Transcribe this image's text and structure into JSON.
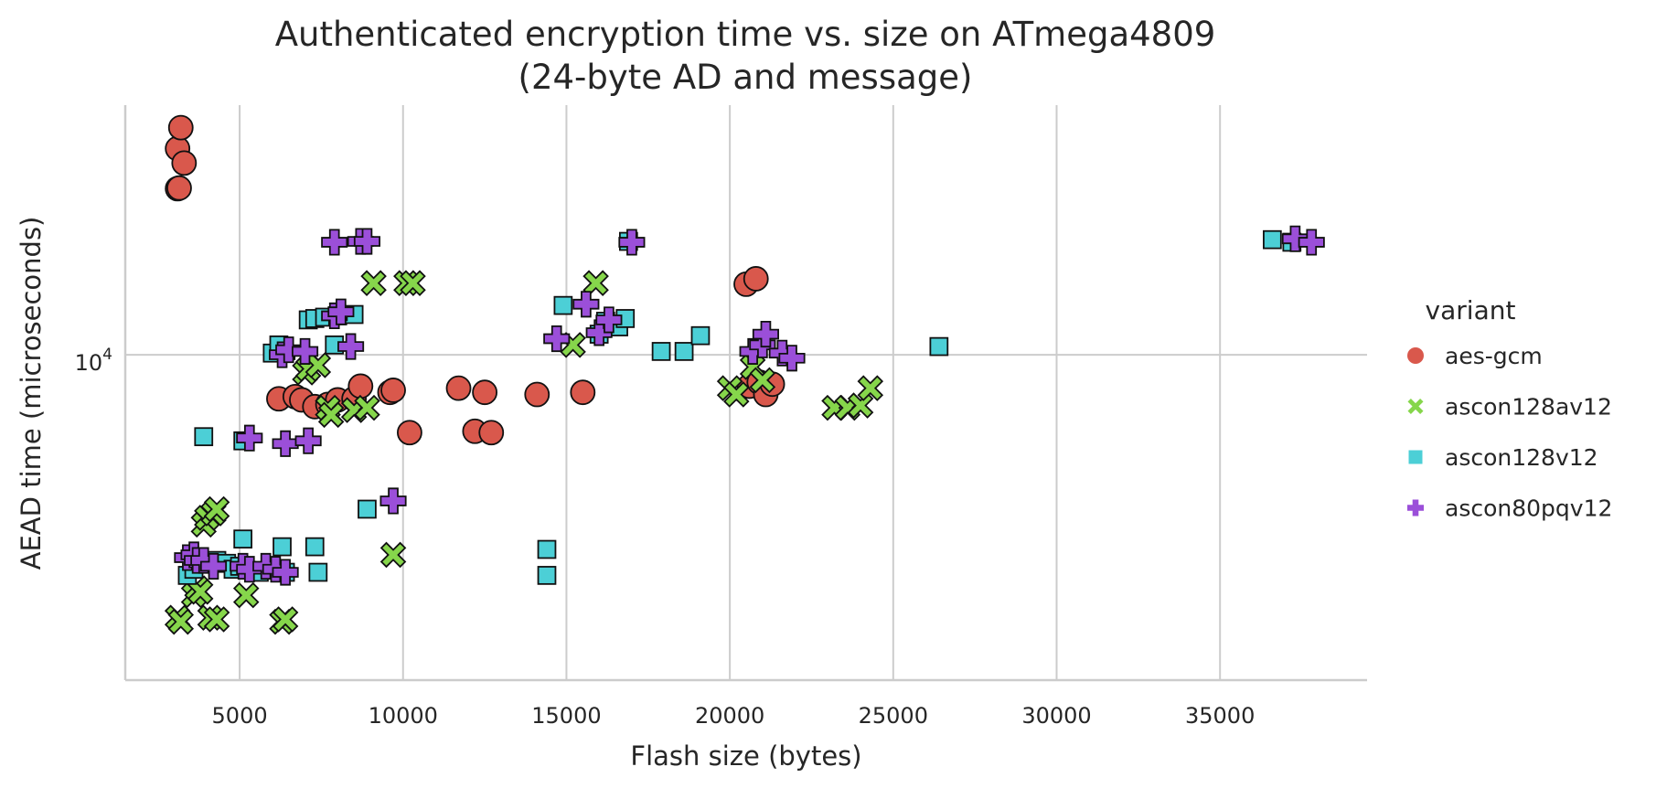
{
  "chart_data": {
    "type": "scatter",
    "title_line1": "Authenticated encryption time vs. size on ATmega4809",
    "title_line2": "(24-byte AD and message)",
    "xlabel": "Flash size (bytes)",
    "ylabel": "AEAD time (microseconds)",
    "xlim": [
      1500,
      39500
    ],
    "ylim": [
      1450,
      44000
    ],
    "yscale": "log",
    "x_ticks": [
      5000,
      10000,
      15000,
      20000,
      25000,
      30000,
      35000
    ],
    "x_tick_labels": [
      "5000",
      "10000",
      "15000",
      "20000",
      "25000",
      "30000",
      "35000"
    ],
    "y_ticks": [
      10000
    ],
    "y_tick_base": "10",
    "y_tick_exp": "4",
    "grid": true,
    "legend_title": "variant",
    "legend_position": "right",
    "series": [
      {
        "name": "aes-gcm",
        "marker": "circle",
        "color": "#d9584c",
        "points": [
          [
            3100,
            34000
          ],
          [
            3200,
            38500
          ],
          [
            3300,
            31200
          ],
          [
            3100,
            26800
          ],
          [
            3150,
            26900
          ],
          [
            6200,
            7700
          ],
          [
            6700,
            7800
          ],
          [
            6900,
            7650
          ],
          [
            7300,
            7350
          ],
          [
            7700,
            7450
          ],
          [
            8000,
            7650
          ],
          [
            8500,
            7700
          ],
          [
            8700,
            8300
          ],
          [
            9600,
            8000
          ],
          [
            9700,
            8100
          ],
          [
            10200,
            6300
          ],
          [
            11700,
            8200
          ],
          [
            12200,
            6350
          ],
          [
            12500,
            8000
          ],
          [
            12700,
            6300
          ],
          [
            14100,
            7900
          ],
          [
            15500,
            8000
          ],
          [
            20500,
            15200
          ],
          [
            20800,
            15700
          ],
          [
            20600,
            8300
          ],
          [
            20900,
            8500
          ],
          [
            21100,
            7900
          ],
          [
            21300,
            8400
          ]
        ]
      },
      {
        "name": "ascon128av12",
        "marker": "x",
        "color": "#86d64b",
        "points": [
          [
            3100,
            2100
          ],
          [
            3200,
            2050
          ],
          [
            3600,
            2400
          ],
          [
            3700,
            2500
          ],
          [
            3800,
            2450
          ],
          [
            3900,
            3650
          ],
          [
            4000,
            3800
          ],
          [
            4200,
            3900
          ],
          [
            4300,
            4000
          ],
          [
            4100,
            2100
          ],
          [
            4300,
            2080
          ],
          [
            5200,
            2400
          ],
          [
            6300,
            2050
          ],
          [
            6400,
            2080
          ],
          [
            7000,
            9000
          ],
          [
            7100,
            9200
          ],
          [
            7400,
            9400
          ],
          [
            7700,
            7300
          ],
          [
            7800,
            7000
          ],
          [
            8500,
            7200
          ],
          [
            8900,
            7300
          ],
          [
            9100,
            15300
          ],
          [
            9700,
            3050
          ],
          [
            10100,
            15300
          ],
          [
            10300,
            15300
          ],
          [
            15200,
            10600
          ],
          [
            15900,
            15300
          ],
          [
            20000,
            8200
          ],
          [
            20200,
            7900
          ],
          [
            20700,
            9300
          ],
          [
            21000,
            8600
          ],
          [
            23200,
            7300
          ],
          [
            23600,
            7300
          ],
          [
            24000,
            7400
          ],
          [
            24300,
            8200
          ]
        ]
      },
      {
        "name": "ascon128v12",
        "marker": "square",
        "color": "#4ccfd6",
        "points": [
          [
            3400,
            2700
          ],
          [
            3600,
            2800
          ],
          [
            3900,
            6150
          ],
          [
            4300,
            2950
          ],
          [
            4600,
            2900
          ],
          [
            4800,
            2800
          ],
          [
            5000,
            2850
          ],
          [
            5100,
            3350
          ],
          [
            5100,
            6000
          ],
          [
            5600,
            2750
          ],
          [
            6000,
            10100
          ],
          [
            6200,
            10600
          ],
          [
            6300,
            3200
          ],
          [
            6400,
            2750
          ],
          [
            7100,
            12300
          ],
          [
            7300,
            12400
          ],
          [
            7300,
            3200
          ],
          [
            7400,
            2750
          ],
          [
            7600,
            12500
          ],
          [
            7900,
            10600
          ],
          [
            8000,
            12600
          ],
          [
            8500,
            12700
          ],
          [
            8900,
            4000
          ],
          [
            14400,
            3150
          ],
          [
            14400,
            2700
          ],
          [
            14900,
            13400
          ],
          [
            16000,
            11300
          ],
          [
            16200,
            12200
          ],
          [
            16600,
            11800
          ],
          [
            16800,
            12400
          ],
          [
            16900,
            19600
          ],
          [
            17900,
            10200
          ],
          [
            18600,
            10200
          ],
          [
            19100,
            11200
          ],
          [
            26400,
            10500
          ],
          [
            36600,
            19800
          ],
          [
            37200,
            19500
          ]
        ]
      },
      {
        "name": "ascon80pqv12",
        "marker": "plus",
        "color": "#9b4fd9",
        "points": [
          [
            3400,
            3000
          ],
          [
            3600,
            3050
          ],
          [
            3700,
            2950
          ],
          [
            3900,
            2950
          ],
          [
            4200,
            2850
          ],
          [
            5100,
            2850
          ],
          [
            5300,
            2800
          ],
          [
            5800,
            2850
          ],
          [
            6100,
            2800
          ],
          [
            6400,
            2750
          ],
          [
            5300,
            6100
          ],
          [
            6400,
            5900
          ],
          [
            6300,
            10000
          ],
          [
            6500,
            10300
          ],
          [
            7000,
            10200
          ],
          [
            7100,
            6000
          ],
          [
            7900,
            12600
          ],
          [
            8100,
            12900
          ],
          [
            8400,
            10500
          ],
          [
            7900,
            19500
          ],
          [
            8700,
            19600
          ],
          [
            8900,
            19600
          ],
          [
            9700,
            4200
          ],
          [
            14700,
            11000
          ],
          [
            15600,
            13500
          ],
          [
            16000,
            11400
          ],
          [
            16300,
            12300
          ],
          [
            17000,
            19500
          ],
          [
            20700,
            10200
          ],
          [
            21000,
            10600
          ],
          [
            21100,
            11300
          ],
          [
            21600,
            10100
          ],
          [
            21900,
            9800
          ],
          [
            37300,
            19900
          ],
          [
            37800,
            19500
          ]
        ]
      }
    ]
  }
}
